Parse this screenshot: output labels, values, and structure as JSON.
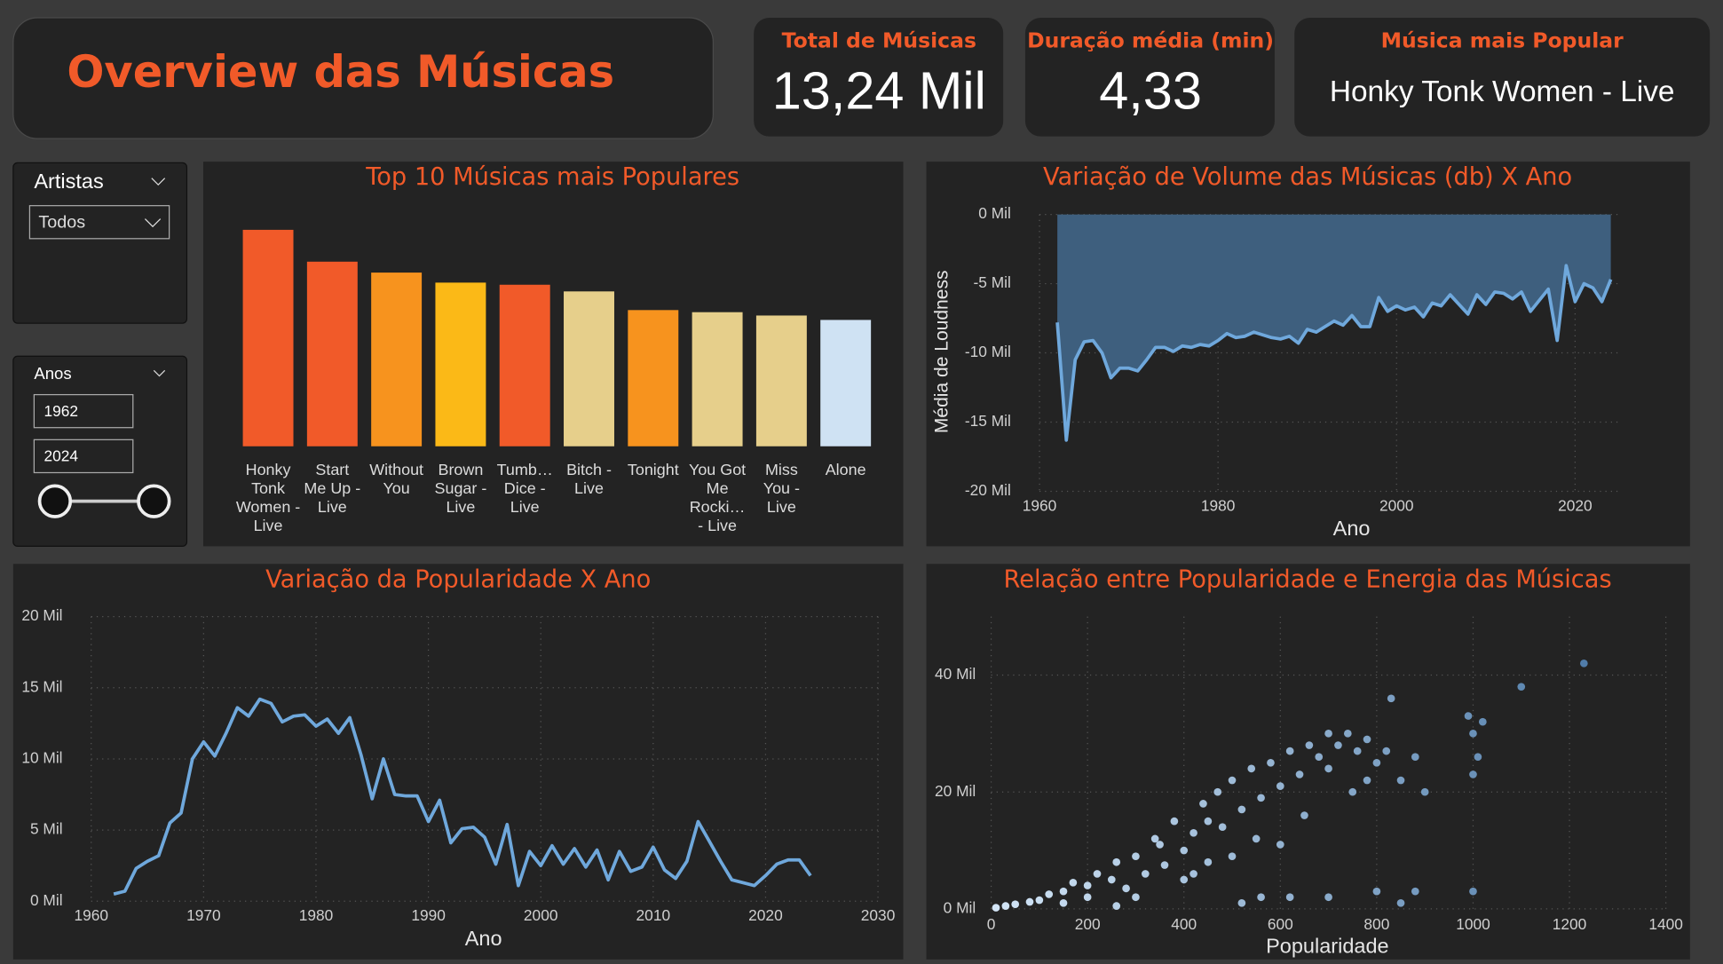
{
  "header": {
    "title": "Overview das Músicas"
  },
  "cards": [
    {
      "label": "Total de Músicas",
      "value": "13,24 Mil"
    },
    {
      "label": "Duração média (min)",
      "value": "4,33"
    },
    {
      "label": "Música mais Popular",
      "value": "Honky Tonk Women - Live"
    }
  ],
  "filters": {
    "artists": {
      "label": "Artistas",
      "selected": "Todos"
    },
    "years": {
      "label": "Anos",
      "from": "1962",
      "to": "2024"
    }
  },
  "chart_data": [
    {
      "type": "bar",
      "title": "Top 10 Músicas mais Populares",
      "categories": [
        "Honky Tonk Women - Live",
        "Start Me Up - Live",
        "Without You",
        "Brown Sugar - Live",
        "Tumb… Dice - Live",
        "Bitch - Live",
        "Tonight",
        "You Got Me Rocki… - Live",
        "Miss You - Live",
        "Alone"
      ],
      "values": [
        1230,
        1049,
        987,
        930,
        918,
        880,
        774,
        762,
        743,
        718
      ],
      "colors": [
        "#f15a29",
        "#f15a29",
        "#f7931e",
        "#fbb917",
        "#f15a29",
        "#e6cf8b",
        "#f7931e",
        "#e6cf8b",
        "#e6cf8b",
        "#cfe2f3"
      ]
    },
    {
      "type": "area",
      "title": "Variação de Volume das Músicas (db) X Ano",
      "x_label": "Ano",
      "y_label": "Média de Loudness",
      "color": "#6fa8dc",
      "fill": "#3e5f7e",
      "grid": true,
      "xlim": [
        1960,
        2025
      ],
      "xticks": [
        1960,
        1980,
        2000,
        2020
      ],
      "ylim": [
        -20,
        0
      ],
      "yticks": [
        {
          "value": 0,
          "label": "0 Mil"
        },
        {
          "value": -5,
          "label": "-5 Mil"
        },
        {
          "value": -10,
          "label": "-10 Mil"
        },
        {
          "value": -15,
          "label": "-15 Mil"
        },
        {
          "value": -20,
          "label": "-20 Mil"
        }
      ],
      "x": [
        1962,
        1963,
        1964,
        1965,
        1966,
        1967,
        1968,
        1969,
        1970,
        1971,
        1972,
        1973,
        1974,
        1975,
        1976,
        1977,
        1978,
        1979,
        1980,
        1981,
        1982,
        1983,
        1984,
        1985,
        1986,
        1987,
        1988,
        1989,
        1990,
        1991,
        1992,
        1993,
        1994,
        1995,
        1996,
        1997,
        1998,
        1999,
        2000,
        2001,
        2002,
        2003,
        2004,
        2005,
        2006,
        2007,
        2008,
        2009,
        2010,
        2011,
        2012,
        2013,
        2014,
        2015,
        2016,
        2017,
        2018,
        2019,
        2020,
        2021,
        2022,
        2023,
        2024
      ],
      "values": [
        -7.8,
        -16.3,
        -10.5,
        -9.2,
        -9.1,
        -10.0,
        -11.8,
        -11.1,
        -11.1,
        -11.3,
        -10.5,
        -9.6,
        -9.6,
        -9.9,
        -9.5,
        -9.6,
        -9.4,
        -9.5,
        -9.1,
        -8.6,
        -8.9,
        -8.8,
        -8.5,
        -8.7,
        -8.9,
        -9.0,
        -8.8,
        -9.3,
        -8.3,
        -8.5,
        -8.1,
        -7.7,
        -8.0,
        -7.3,
        -8.1,
        -8.1,
        -6.0,
        -7.0,
        -6.6,
        -6.9,
        -6.7,
        -7.4,
        -6.4,
        -6.6,
        -5.8,
        -6.5,
        -7.2,
        -5.8,
        -6.5,
        -5.6,
        -5.7,
        -6.1,
        -5.6,
        -7.0,
        -6.2,
        -5.4,
        -9.1,
        -3.7,
        -6.3,
        -5.0,
        -5.3,
        -6.3,
        -4.7
      ]
    },
    {
      "type": "line",
      "title": "Variação da Popularidade X Ano",
      "x_label": "Ano",
      "color": "#6fa8dc",
      "grid": true,
      "xlim": [
        1960,
        2030
      ],
      "xticks": [
        1960,
        1970,
        1980,
        1990,
        2000,
        2010,
        2020,
        2030
      ],
      "ylim": [
        0,
        20
      ],
      "yticks": [
        {
          "value": 0,
          "label": "0 Mil"
        },
        {
          "value": 5,
          "label": "5 Mil"
        },
        {
          "value": 10,
          "label": "10 Mil"
        },
        {
          "value": 15,
          "label": "15 Mil"
        },
        {
          "value": 20,
          "label": "20 Mil"
        }
      ],
      "x": [
        1962,
        1963,
        1964,
        1965,
        1966,
        1967,
        1968,
        1969,
        1970,
        1971,
        1972,
        1973,
        1974,
        1975,
        1976,
        1977,
        1978,
        1979,
        1980,
        1981,
        1982,
        1983,
        1984,
        1985,
        1986,
        1987,
        1988,
        1989,
        1990,
        1991,
        1992,
        1993,
        1994,
        1995,
        1996,
        1997,
        1998,
        1999,
        2000,
        2001,
        2002,
        2003,
        2004,
        2005,
        2006,
        2007,
        2008,
        2009,
        2010,
        2011,
        2012,
        2013,
        2014,
        2015,
        2016,
        2017,
        2018,
        2019,
        2020,
        2021,
        2022,
        2023,
        2024
      ],
      "values": [
        0.5,
        0.7,
        2.3,
        2.8,
        3.2,
        5.5,
        6.2,
        10.0,
        11.2,
        10.2,
        11.8,
        13.6,
        13.0,
        14.2,
        13.9,
        12.6,
        13.0,
        13.1,
        12.3,
        12.8,
        11.8,
        12.9,
        10.3,
        7.2,
        10.0,
        7.5,
        7.4,
        7.4,
        5.6,
        7.1,
        4.1,
        5.1,
        5.2,
        4.5,
        2.6,
        5.4,
        1.1,
        3.5,
        2.5,
        3.9,
        2.6,
        3.7,
        2.4,
        3.6,
        1.5,
        3.5,
        2.1,
        2.4,
        3.8,
        2.2,
        1.6,
        2.8,
        5.6,
        4.2,
        2.8,
        1.5,
        1.3,
        1.1,
        1.8,
        2.6,
        2.9,
        2.9,
        1.8
      ]
    },
    {
      "type": "scatter",
      "title": "Relação entre Popularidade e Energia das Músicas",
      "x_label": "Popularidade",
      "color_scale": [
        "#d4e6f7",
        "#3f6f9f"
      ],
      "grid": true,
      "xlim": [
        0,
        1400
      ],
      "xticks": [
        0,
        200,
        400,
        600,
        800,
        1000,
        1200,
        1400
      ],
      "ylim": [
        0,
        50
      ],
      "yticks": [
        {
          "value": 0,
          "label": "0 Mil"
        },
        {
          "value": 20,
          "label": "20 Mil"
        },
        {
          "value": 40,
          "label": "40 Mil"
        }
      ],
      "x": [
        10,
        30,
        50,
        80,
        100,
        120,
        150,
        170,
        200,
        220,
        250,
        260,
        280,
        300,
        320,
        340,
        360,
        380,
        400,
        420,
        440,
        450,
        470,
        480,
        500,
        520,
        540,
        560,
        580,
        600,
        620,
        640,
        660,
        680,
        700,
        720,
        740,
        760,
        780,
        800,
        820,
        850,
        880,
        900,
        830,
        1000,
        1010,
        1020,
        990,
        1100,
        1230,
        1000,
        1000,
        560,
        620,
        700,
        800,
        850,
        880,
        520,
        400,
        300,
        200,
        150,
        350,
        450,
        550,
        650,
        750,
        600,
        500,
        420,
        260,
        700,
        780
      ],
      "values": [
        0.2,
        0.5,
        0.8,
        1.2,
        1.5,
        2.5,
        3,
        4.5,
        2,
        6,
        5,
        8,
        3.5,
        9,
        6,
        12,
        7.5,
        15,
        10,
        13,
        18,
        8,
        20,
        14,
        22,
        17,
        24,
        19,
        25,
        21,
        27,
        23,
        28,
        26,
        30,
        28,
        30,
        27,
        29,
        25,
        27,
        22,
        26,
        20,
        36,
        30,
        26,
        32,
        33,
        38,
        42,
        23,
        3,
        2,
        2,
        2,
        3,
        1,
        3,
        1,
        5,
        2,
        4,
        1,
        11,
        15,
        12,
        16,
        20,
        11,
        9,
        6,
        0.5,
        24,
        22
      ]
    }
  ]
}
